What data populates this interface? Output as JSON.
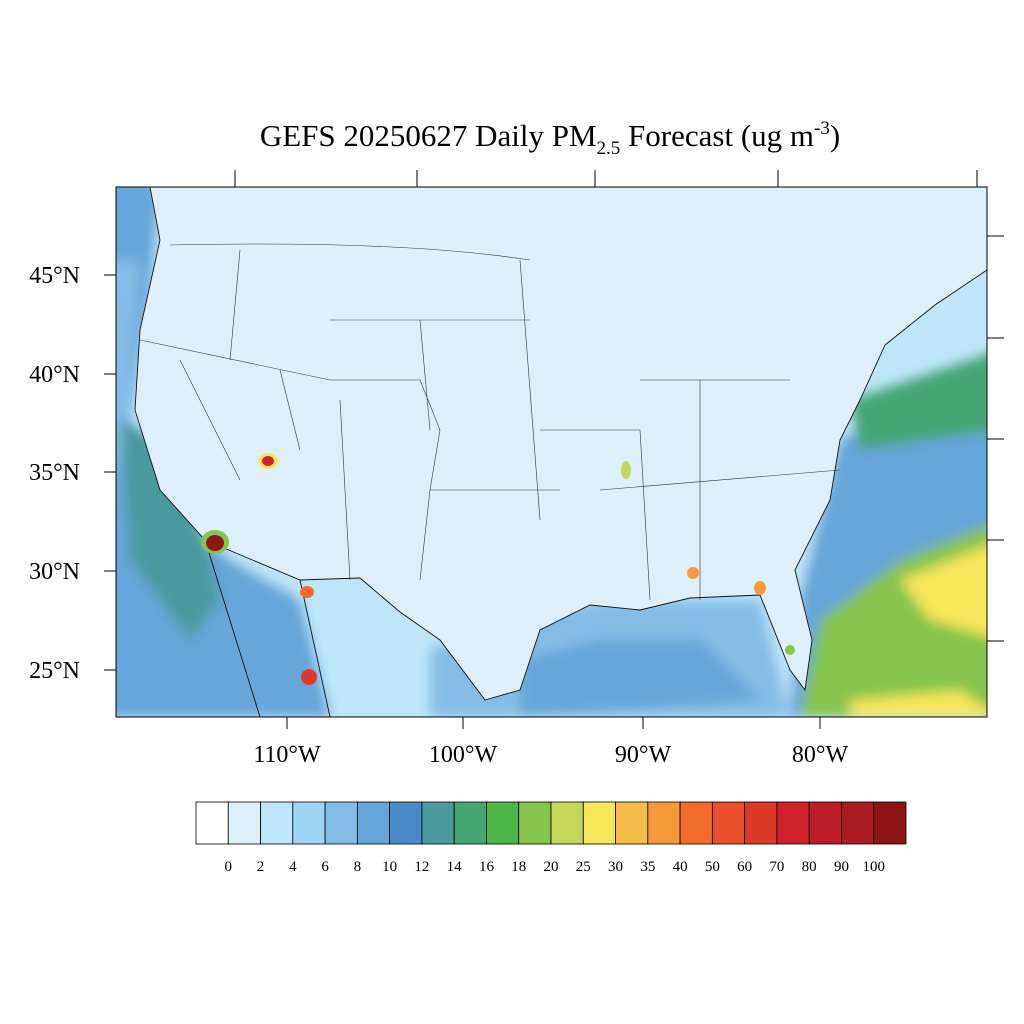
{
  "title": {
    "main": "GEFS 20250627 Daily PM",
    "sub": "2.5",
    "mid": " Forecast (ug m",
    "sup": "-3",
    "end": ")"
  },
  "map": {
    "lat_labels": [
      "45°N",
      "40°N",
      "35°N",
      "30°N",
      "25°N"
    ],
    "lon_labels": [
      "110°W",
      "100°W",
      "90°W",
      "80°W"
    ]
  },
  "colorbar": {
    "levels": [
      0,
      2,
      4,
      6,
      8,
      10,
      12,
      14,
      16,
      18,
      20,
      25,
      30,
      35,
      40,
      50,
      60,
      70,
      80,
      90,
      100
    ],
    "colors": [
      "#ffffff",
      "#ddf0fa",
      "#bfe6f8",
      "#9dd6f3",
      "#83bde6",
      "#66a6d9",
      "#4a8ac8",
      "#4a9a9c",
      "#45a574",
      "#4cb54a",
      "#86c44d",
      "#c5d75a",
      "#f6e65a",
      "#f8bd48",
      "#f59a3b",
      "#f26d2c",
      "#e9502b",
      "#db3a28",
      "#d0222c",
      "#bb1c27",
      "#a91b22",
      "#8f1518"
    ]
  }
}
